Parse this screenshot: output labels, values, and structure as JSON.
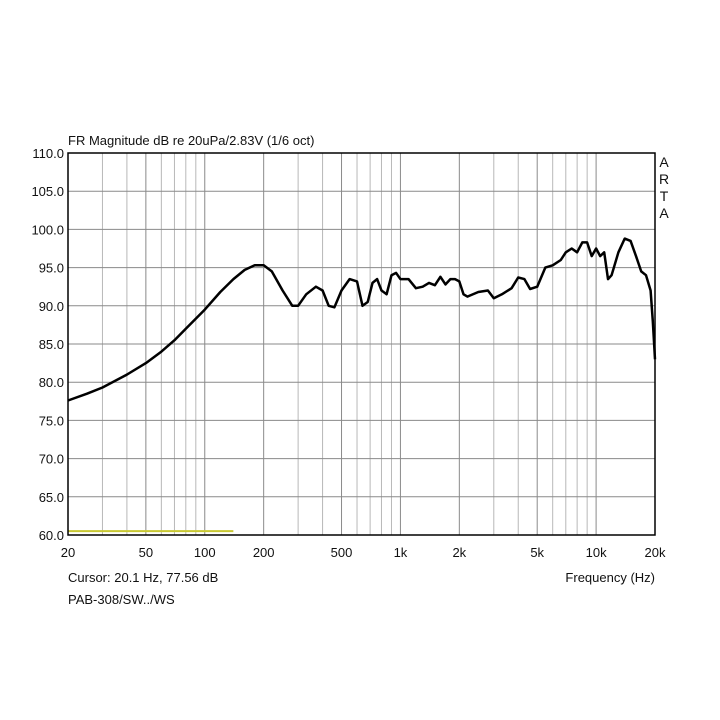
{
  "chart_data": {
    "type": "line",
    "title": "FR Magnitude dB re 20uPa/2.83V (1/6 oct)",
    "side_label": "ARTA",
    "cursor_text": "Cursor: 20.1 Hz, 77.56 dB",
    "file_text": "PAB-308/SW../WS",
    "x_label": "Frequency (Hz)",
    "log_x": true,
    "grid": true,
    "xlim": [
      20,
      20000
    ],
    "ylim": [
      60,
      110
    ],
    "xticks": [
      20,
      50,
      100,
      200,
      500,
      {
        "value": 1000,
        "label": "1k"
      },
      {
        "value": 2000,
        "label": "2k"
      },
      {
        "value": 5000,
        "label": "5k"
      },
      {
        "value": 10000,
        "label": "10k"
      },
      {
        "value": 20000,
        "label": "20k"
      }
    ],
    "xminorticks": [
      30,
      40,
      60,
      70,
      80,
      90,
      300,
      400,
      600,
      700,
      800,
      900,
      3000,
      4000,
      6000,
      7000,
      8000,
      9000
    ],
    "yticks": [
      {
        "value": 60,
        "label": "60.0"
      },
      {
        "value": 65,
        "label": "65.0"
      },
      {
        "value": 70,
        "label": "70.0"
      },
      {
        "value": 75,
        "label": "75.0"
      },
      {
        "value": 80,
        "label": "80.0"
      },
      {
        "value": 85,
        "label": "85.0"
      },
      {
        "value": 90,
        "label": "90.0"
      },
      {
        "value": 95,
        "label": "95.0"
      },
      {
        "value": 100,
        "label": "100.0"
      },
      {
        "value": 105,
        "label": "105.0"
      },
      {
        "value": 110,
        "label": "110.0"
      }
    ],
    "range_marker": {
      "x": [
        20,
        140
      ],
      "value": 60.5,
      "color": "#c8c832"
    },
    "series": [
      {
        "color": "#000000",
        "x": [
          20,
          25,
          30,
          40,
          50,
          60,
          70,
          80,
          100,
          120,
          140,
          160,
          180,
          200,
          220,
          250,
          280,
          300,
          330,
          370,
          400,
          430,
          460,
          500,
          550,
          600,
          640,
          680,
          720,
          760,
          800,
          850,
          900,
          950,
          1000,
          1100,
          1200,
          1300,
          1400,
          1500,
          1600,
          1700,
          1800,
          1900,
          2000,
          2100,
          2200,
          2500,
          2800,
          3000,
          3300,
          3700,
          4000,
          4300,
          4600,
          5000,
          5500,
          6000,
          6600,
          7000,
          7500,
          8000,
          8500,
          9000,
          9500,
          10000,
          10500,
          11000,
          11500,
          12000,
          13000,
          14000,
          15000,
          16000,
          17000,
          18000,
          19000,
          19500,
          20000
        ],
        "values": [
          77.6,
          78.5,
          79.3,
          81,
          82.5,
          84,
          85.5,
          87,
          89.5,
          91.8,
          93.5,
          94.7,
          95.3,
          95.3,
          94.5,
          92,
          90,
          90,
          91.5,
          92.5,
          92,
          90,
          89.8,
          92,
          93.5,
          93.2,
          90,
          90.5,
          93,
          93.5,
          92,
          91.5,
          94,
          94.3,
          93.5,
          93.5,
          92.3,
          92.5,
          93,
          92.7,
          93.8,
          92.8,
          93.5,
          93.5,
          93.2,
          91.5,
          91.2,
          91.8,
          92,
          91,
          91.5,
          92.3,
          93.7,
          93.5,
          92.2,
          92.5,
          95,
          95.3,
          96,
          97,
          97.5,
          97,
          98.3,
          98.3,
          96.5,
          97.5,
          96.5,
          97,
          93.5,
          94,
          97,
          98.8,
          98.5,
          96.5,
          94.5,
          94,
          92,
          88,
          83
        ]
      }
    ]
  }
}
